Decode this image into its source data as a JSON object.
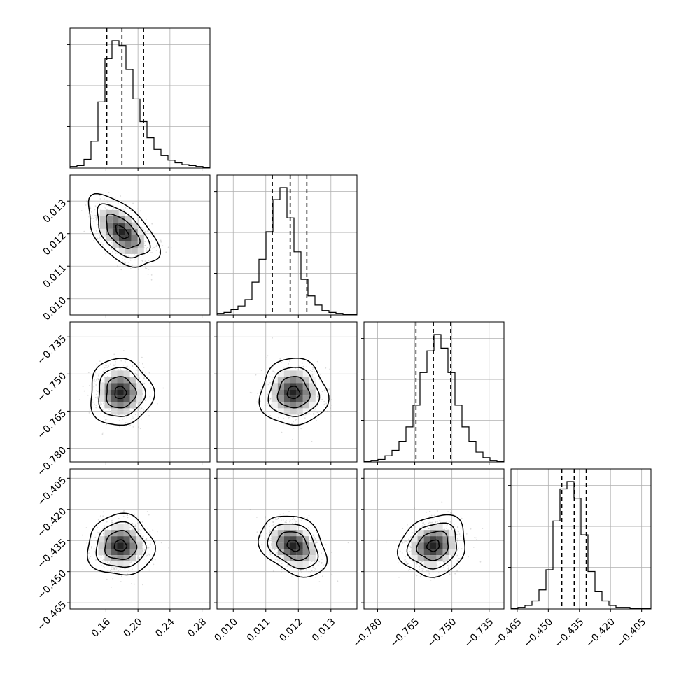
{
  "chart_data": {
    "type": "corner",
    "parameters": 4,
    "grid": true,
    "quantile_lines": "dashed",
    "colors": {
      "frame": "#000000",
      "grid": "#b0b0b0",
      "density": "#000000",
      "scatter": "#9a9a9a"
    },
    "axes": [
      {
        "range": [
          0.115,
          0.29
        ],
        "ticks": [
          "0.16",
          "0.20",
          "0.24",
          "0.28"
        ],
        "tick_values": [
          0.16,
          0.2,
          0.24,
          0.28
        ]
      },
      {
        "range": [
          0.0095,
          0.0138
        ],
        "ticks": [
          "0.010",
          "0.011",
          "0.012",
          "0.013"
        ],
        "tick_values": [
          0.01,
          0.011,
          0.012,
          0.013
        ]
      },
      {
        "range": [
          -0.7855,
          -0.729
        ],
        "ticks": [
          "−0.780",
          "−0.765",
          "−0.750",
          "−0.735"
        ],
        "tick_values": [
          -0.78,
          -0.765,
          -0.75,
          -0.735
        ]
      },
      {
        "range": [
          -0.468,
          -0.4005
        ],
        "ticks": [
          "−0.465",
          "−0.450",
          "−0.435",
          "−0.420",
          "−0.405"
        ],
        "tick_values": [
          -0.465,
          -0.45,
          -0.435,
          -0.42,
          -0.405
        ]
      }
    ],
    "histograms": [
      {
        "quantiles": [
          0.161,
          0.18,
          0.207
        ],
        "edges_lo": 0.115,
        "bin_width": 0.00875,
        "counts": [
          1,
          2,
          9,
          29,
          73,
          121,
          141,
          135,
          109,
          76,
          51,
          33,
          20,
          13,
          8,
          5,
          3,
          2,
          1,
          0
        ]
      },
      {
        "quantiles": [
          0.0112,
          0.01175,
          0.01226
        ],
        "edges_lo": 0.0095,
        "bin_width": 0.000215,
        "counts": [
          1,
          2,
          5,
          9,
          16,
          35,
          60,
          90,
          125,
          138,
          105,
          68,
          38,
          20,
          10,
          4,
          2,
          1,
          0,
          0
        ]
      },
      {
        "quantiles": [
          -0.7645,
          -0.7575,
          -0.7505
        ],
        "edges_lo": -0.7855,
        "bin_width": 0.002825,
        "counts": [
          0,
          1,
          2,
          6,
          12,
          22,
          38,
          62,
          98,
          122,
          140,
          125,
          98,
          62,
          38,
          22,
          10,
          4,
          1,
          0
        ]
      },
      {
        "quantiles": [
          -0.4435,
          -0.4375,
          -0.4317
        ],
        "edges_lo": -0.468,
        "bin_width": 0.003375,
        "counts": [
          0,
          1,
          3,
          8,
          20,
          42,
          95,
          130,
          138,
          120,
          80,
          40,
          18,
          8,
          3,
          1,
          1,
          0,
          0,
          0
        ]
      }
    ],
    "pairs": [
      {
        "row": 1,
        "col": 0,
        "cx": 0.18,
        "cy": 0.01205,
        "sx": 0.018,
        "sy": 0.00045,
        "tilt": -0.55
      },
      {
        "row": 2,
        "col": 0,
        "cx": 0.178,
        "cy": -0.7575,
        "sx": 0.016,
        "sy": 0.0055,
        "tilt": 0.0
      },
      {
        "row": 2,
        "col": 1,
        "cx": 0.01185,
        "cy": -0.7575,
        "sx": 0.00042,
        "sy": 0.0055,
        "tilt": 0.0
      },
      {
        "row": 3,
        "col": 0,
        "cx": 0.178,
        "cy": -0.4375,
        "sx": 0.017,
        "sy": 0.006,
        "tilt": 0.0
      },
      {
        "row": 3,
        "col": 1,
        "cx": 0.01185,
        "cy": -0.4375,
        "sx": 0.00042,
        "sy": 0.006,
        "tilt": -0.3
      },
      {
        "row": 3,
        "col": 2,
        "cx": -0.7575,
        "cy": -0.4375,
        "sx": 0.0055,
        "sy": 0.006,
        "tilt": 0.15
      }
    ]
  }
}
